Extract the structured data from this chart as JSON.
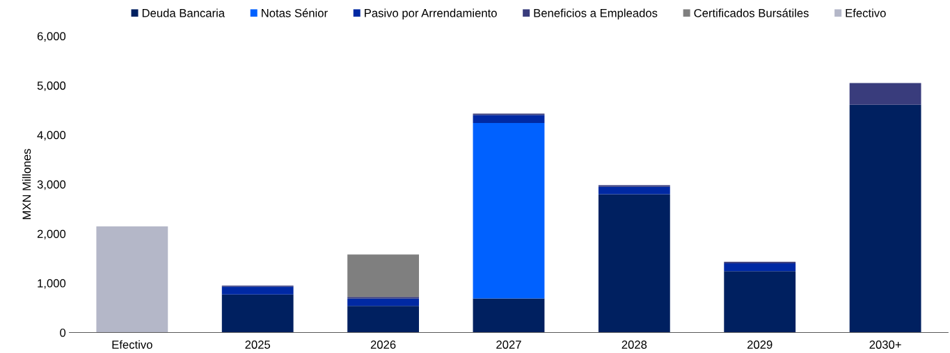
{
  "chart_data": {
    "type": "bar",
    "stacked": true,
    "ylabel": "MXN Millones",
    "categories": [
      "Efectivo",
      "2025",
      "2026",
      "2027",
      "2028",
      "2029",
      "2030+"
    ],
    "series": [
      {
        "name": "Deuda Bancaria",
        "color": "#002060",
        "values": [
          null,
          770,
          540,
          690,
          2800,
          1240,
          4610
        ]
      },
      {
        "name": "Notas Sénior",
        "color": "#0061ff",
        "values": [
          null,
          null,
          null,
          3550,
          null,
          null,
          null
        ]
      },
      {
        "name": "Pasivo por Arrendamiento",
        "color": "#0029a3",
        "values": [
          null,
          160,
          150,
          160,
          150,
          160,
          null
        ]
      },
      {
        "name": "Beneficios a Empleados",
        "color": "#393c7c",
        "values": [
          null,
          20,
          30,
          30,
          30,
          30,
          440
        ]
      },
      {
        "name": "Certificados Bursátiles",
        "color": "#7f7f7f",
        "values": [
          null,
          null,
          860,
          null,
          null,
          null,
          null
        ]
      },
      {
        "name": "Efectivo",
        "color": "#b4b7c8",
        "values": [
          2150,
          null,
          null,
          null,
          null,
          null,
          null
        ]
      }
    ],
    "ylim": [
      0,
      6000
    ],
    "yticks": [
      {
        "value": 0,
        "label": "0"
      },
      {
        "value": 1000,
        "label": "1,000"
      },
      {
        "value": 2000,
        "label": "2,000"
      },
      {
        "value": 3000,
        "label": "3,000"
      },
      {
        "value": 4000,
        "label": "4,000"
      },
      {
        "value": 5000,
        "label": "5,000"
      },
      {
        "value": 6000,
        "label": "6,000"
      }
    ],
    "grid": false,
    "legend": "top"
  }
}
